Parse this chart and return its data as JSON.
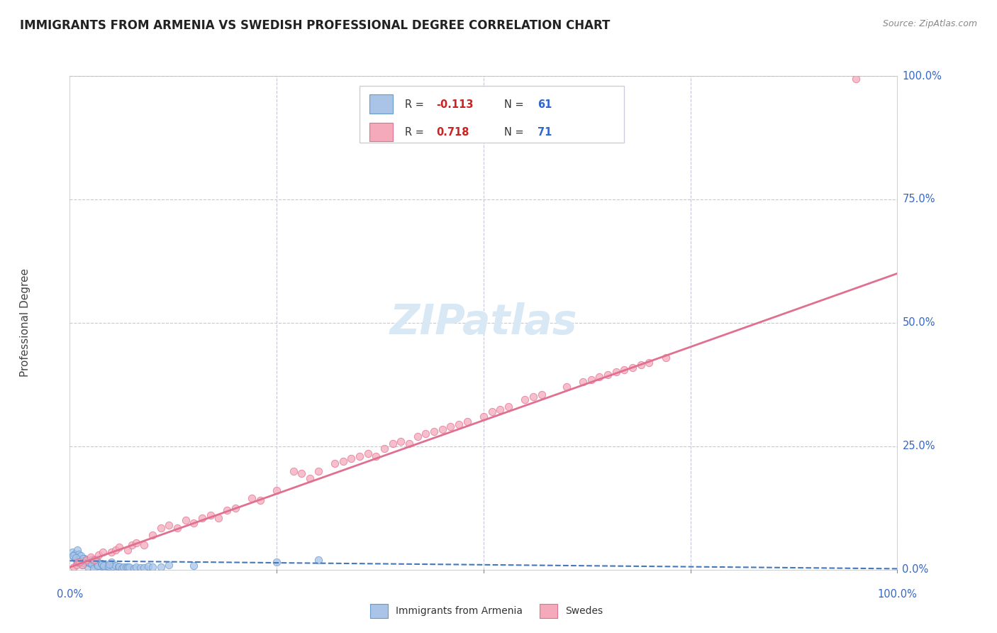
{
  "title": "IMMIGRANTS FROM ARMENIA VS SWEDISH PROFESSIONAL DEGREE CORRELATION CHART",
  "source": "Source: ZipAtlas.com",
  "ylabel": "Professional Degree",
  "armenia_color": "#aac4e8",
  "armenia_edge": "#6699cc",
  "swedes_color": "#f5aabb",
  "swedes_edge": "#e07090",
  "armenia_trend_color": "#4477bb",
  "swedes_trend_color": "#e07090",
  "watermark_color": "#d8e8f4",
  "background_color": "#ffffff",
  "grid_color": "#c8c8dc",
  "legend_box_color": "#f0f4f8",
  "legend_border_color": "#ccccdd",
  "r_color": "#cc2222",
  "n_color": "#3366cc",
  "label_color": "#3366cc",
  "title_color": "#222222",
  "ylabel_color": "#444444",
  "armenia_x": [
    0.5,
    0.8,
    1.0,
    1.2,
    1.5,
    1.8,
    2.0,
    2.2,
    2.5,
    2.8,
    3.0,
    3.2,
    3.5,
    4.0,
    4.2,
    4.5,
    0.3,
    0.6,
    0.9,
    1.1,
    1.3,
    1.4,
    1.6,
    1.7,
    1.9,
    2.1,
    2.3,
    2.6,
    2.7,
    2.9,
    3.1,
    3.3,
    3.4,
    3.8,
    3.9,
    4.1,
    4.7,
    5.0,
    5.2,
    5.5,
    5.9,
    6.0,
    6.3,
    6.5,
    6.8,
    7.0,
    7.2,
    7.8,
    8.0,
    8.5,
    9.0,
    9.5,
    10.0,
    11.0,
    12.0,
    15.0,
    0.4,
    0.7,
    4.8,
    25.0,
    30.0
  ],
  "armenia_y": [
    2.5,
    1.8,
    2.0,
    1.5,
    1.0,
    2.2,
    1.6,
    0.5,
    1.2,
    1.8,
    0.8,
    2.0,
    0.9,
    0.5,
    0.5,
    0.9,
    3.5,
    3.2,
    4.0,
    3.1,
    2.8,
    1.8,
    2.3,
    1.4,
    1.9,
    1.5,
    1.5,
    1.2,
    2.1,
    0.3,
    2.0,
    1.0,
    0.9,
    1.3,
    1.1,
    0.8,
    0.7,
    1.5,
    0.7,
    0.8,
    0.5,
    0.7,
    0.3,
    0.6,
    0.5,
    0.6,
    0.6,
    0.3,
    0.5,
    0.4,
    0.4,
    0.7,
    0.6,
    0.5,
    1.0,
    0.8,
    2.9,
    2.4,
    1.1,
    1.5,
    2.0
  ],
  "swedes_x": [
    0.5,
    0.8,
    1.0,
    1.5,
    2.0,
    2.5,
    3.0,
    3.5,
    4.0,
    5.0,
    5.5,
    6.0,
    7.0,
    7.5,
    8.0,
    9.0,
    10.0,
    11.0,
    12.0,
    13.0,
    14.0,
    15.0,
    16.0,
    17.0,
    18.0,
    19.0,
    20.0,
    22.0,
    23.0,
    25.0,
    27.0,
    28.0,
    29.0,
    30.0,
    32.0,
    33.0,
    34.0,
    35.0,
    36.0,
    37.0,
    38.0,
    39.0,
    40.0,
    41.0,
    42.0,
    43.0,
    44.0,
    45.0,
    46.0,
    47.0,
    48.0,
    50.0,
    51.0,
    52.0,
    53.0,
    55.0,
    56.0,
    57.0,
    60.0,
    62.0,
    63.0,
    64.0,
    65.0,
    66.0,
    67.0,
    68.0,
    69.0,
    70.0,
    72.0,
    95.0,
    1.2
  ],
  "swedes_y": [
    0.5,
    1.0,
    1.5,
    1.0,
    2.0,
    2.5,
    2.0,
    3.0,
    3.5,
    3.5,
    4.0,
    4.5,
    4.0,
    5.0,
    5.5,
    5.0,
    7.0,
    8.5,
    9.0,
    8.5,
    10.0,
    9.5,
    10.5,
    11.0,
    10.5,
    12.0,
    12.5,
    14.5,
    14.0,
    16.0,
    20.0,
    19.5,
    18.5,
    20.0,
    21.5,
    22.0,
    22.5,
    23.0,
    23.5,
    23.0,
    24.5,
    25.5,
    26.0,
    25.5,
    27.0,
    27.5,
    28.0,
    28.5,
    29.0,
    29.5,
    30.0,
    31.0,
    32.0,
    32.5,
    33.0,
    34.5,
    35.0,
    35.5,
    37.0,
    38.0,
    38.5,
    39.0,
    39.5,
    40.0,
    40.5,
    41.0,
    41.5,
    42.0,
    43.0,
    99.5,
    1.5
  ],
  "armenia_trend_x": [
    0,
    100
  ],
  "armenia_trend_y": [
    1.8,
    0.2
  ],
  "swedes_trend_x": [
    0,
    100
  ],
  "swedes_trend_y": [
    0.5,
    60.0
  ],
  "scatter_size": 55,
  "scatter_alpha": 0.75,
  "scatter_lw": 0.7,
  "xlim": [
    -1,
    101
  ],
  "ylim": [
    -3,
    103
  ],
  "plot_area_xlim": [
    0,
    100
  ],
  "plot_area_ylim": [
    0,
    100
  ],
  "x_tick_positions": [
    0,
    25,
    50,
    75,
    100
  ],
  "y_tick_positions": [
    0,
    25,
    50,
    75,
    100
  ],
  "x_tick_labels": [
    "0.0%",
    "",
    "",
    "",
    "100.0%"
  ],
  "y_tick_labels": [
    "0.0%",
    "25.0%",
    "50.0%",
    "75.0%",
    "100.0%"
  ],
  "legend_entries": [
    {
      "label": "Immigrants from Armenia",
      "r": "-0.113",
      "n": "61"
    },
    {
      "label": "Swedes",
      "r": "0.718",
      "n": "71"
    }
  ],
  "bottom_legend": [
    {
      "label": "Immigrants from Armenia"
    },
    {
      "label": "Swedes"
    }
  ]
}
